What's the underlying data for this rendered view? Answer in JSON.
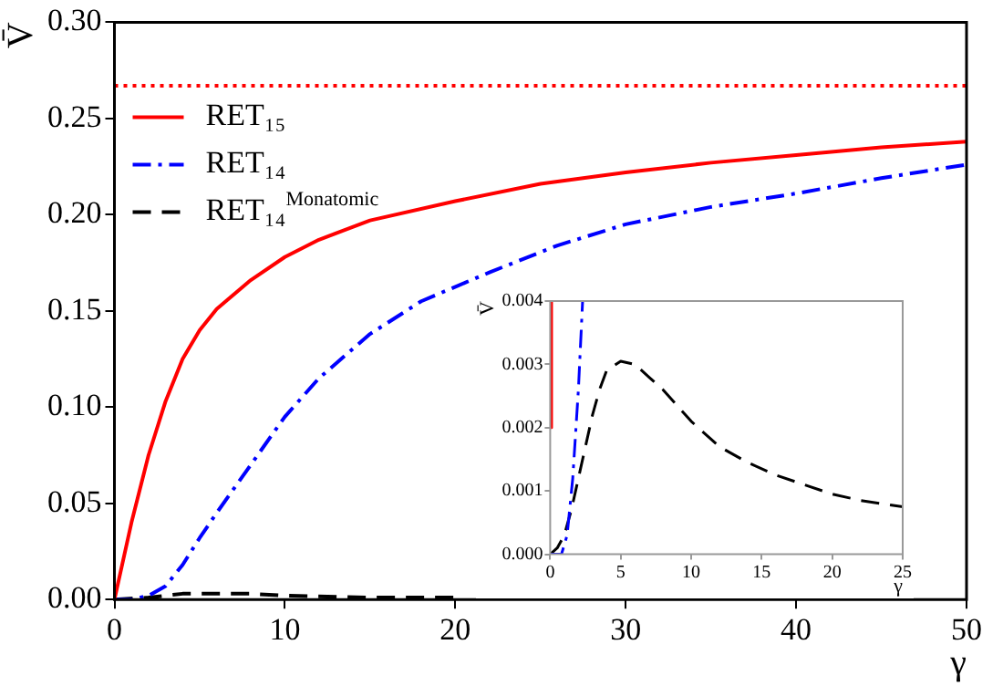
{
  "chart_data": [
    {
      "type": "line",
      "xlabel": "γ",
      "ylabel": "V̄",
      "xlim": [
        0,
        50
      ],
      "ylim": [
        0,
        0.3
      ],
      "xticks": [
        0,
        10,
        20,
        30,
        40,
        50
      ],
      "yticks": [
        {
          "value": 0,
          "label": "0.00"
        },
        0.05,
        {
          "value": 0.1,
          "label": "0.10"
        },
        0.15,
        {
          "value": 0.2,
          "label": "0.20"
        },
        0.25,
        {
          "value": 0.3,
          "label": "0.30"
        }
      ],
      "legend": "top left",
      "series": [
        {
          "name": "RET₁₅",
          "color": "#ff0000",
          "line_style": "solid",
          "x": [
            0,
            1,
            2,
            3,
            4,
            5,
            6,
            8,
            10,
            12,
            15,
            20,
            25,
            30,
            35,
            40,
            45,
            50
          ],
          "values": [
            0,
            0.04,
            0.075,
            0.103,
            0.125,
            0.14,
            0.151,
            0.166,
            0.178,
            0.187,
            0.197,
            0.207,
            0.216,
            0.222,
            0.227,
            0.231,
            0.235,
            0.238
          ]
        },
        {
          "name": "RET₁₄",
          "color": "#0000ff",
          "line_style": "dashdot",
          "x": [
            0,
            1,
            2,
            3,
            4,
            5,
            6,
            8,
            10,
            12,
            15,
            18,
            22,
            26,
            30,
            35,
            40,
            45,
            50
          ],
          "values": [
            0,
            0,
            0.002,
            0.007,
            0.018,
            0.032,
            0.045,
            0.07,
            0.095,
            0.115,
            0.138,
            0.155,
            0.17,
            0.184,
            0.195,
            0.204,
            0.211,
            0.219,
            0.226
          ]
        },
        {
          "name": "RET₁₄$^{Monatomic}$",
          "color": "#000000",
          "line_style": "dashed",
          "x": [
            0,
            2,
            4,
            6,
            8,
            10,
            15,
            20
          ],
          "values": [
            0,
            0.001,
            0.003,
            0.003,
            0.003,
            0.002,
            0.001,
            0.001
          ]
        }
      ],
      "ref_lines": [
        {
          "axis": "y",
          "value": 0.267,
          "color": "#ff0000",
          "line_style": "dotted"
        }
      ]
    },
    {
      "type": "line",
      "xlabel": "γ",
      "ylabel": "V̄",
      "xlim": [
        0,
        25
      ],
      "ylim": [
        0,
        0.004
      ],
      "xticks": [
        0,
        5,
        10,
        15,
        20,
        25
      ],
      "yticks": [
        {
          "value": 0,
          "label": "0.000"
        },
        {
          "value": 0.001,
          "label": "0.001"
        },
        {
          "value": 0.002,
          "label": "0.002"
        },
        {
          "value": 0.003,
          "label": "0.003"
        },
        {
          "value": 0.004,
          "label": "0.004"
        }
      ],
      "series": [
        {
          "color": "#ff0000",
          "line_style": "solid",
          "x": [
            0.05,
            0.1
          ],
          "values": [
            0.002,
            0.004
          ]
        },
        {
          "color": "#0000ff",
          "line_style": "dashdot",
          "x": [
            0,
            0.8,
            1.2,
            1.6,
            2,
            2.3
          ],
          "values": [
            0,
            0,
            0.0003,
            0.0012,
            0.0026,
            0.004
          ]
        },
        {
          "color": "#000000",
          "line_style": "dashed",
          "x": [
            0,
            0.5,
            1,
            1.5,
            2,
            2.5,
            3,
            3.5,
            4,
            5,
            6,
            7,
            8,
            10,
            12,
            14,
            16,
            18,
            20,
            22,
            25
          ],
          "values": [
            0,
            0.0001,
            0.0003,
            0.0007,
            0.0012,
            0.0017,
            0.0022,
            0.0026,
            0.0029,
            0.00305,
            0.003,
            0.0028,
            0.0026,
            0.0021,
            0.0017,
            0.00145,
            0.00125,
            0.0011,
            0.00095,
            0.00085,
            0.00075
          ]
        }
      ]
    }
  ]
}
